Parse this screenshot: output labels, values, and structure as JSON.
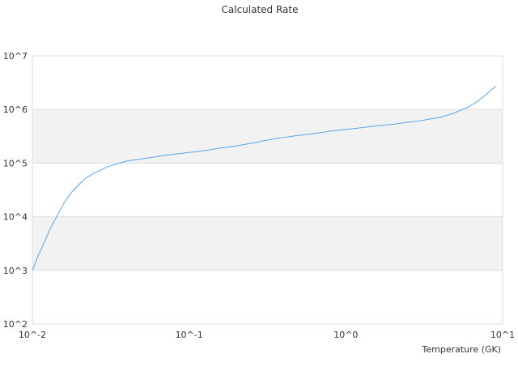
{
  "chart_data": {
    "type": "line",
    "title": "Calculated Rate",
    "xlabel": "Temperature (GK)",
    "ylabel": "",
    "x_scale": "log",
    "y_scale": "log",
    "xlim": [
      0.01,
      10
    ],
    "ylim": [
      100,
      10000000
    ],
    "x_ticks": [
      {
        "value": 0.01,
        "label": "10^-2"
      },
      {
        "value": 0.1,
        "label": "10^-1"
      },
      {
        "value": 1,
        "label": "10^0"
      },
      {
        "value": 10,
        "label": "10^1"
      }
    ],
    "y_ticks": [
      {
        "value": 100,
        "label": "10^2"
      },
      {
        "value": 1000,
        "label": "10^3"
      },
      {
        "value": 10000,
        "label": "10^4"
      },
      {
        "value": 100000,
        "label": "10^5"
      },
      {
        "value": 1000000,
        "label": "10^6"
      },
      {
        "value": 10000000,
        "label": "10^7"
      }
    ],
    "alternating_bands": true,
    "legend": "none",
    "colors": {
      "line": "#5aa5e6",
      "band": "#f2f2f2",
      "grid": "#dddddd"
    },
    "series": [
      {
        "x": [
          0.01,
          0.011,
          0.012,
          0.013,
          0.014,
          0.015,
          0.016,
          0.018,
          0.02,
          0.022,
          0.025,
          0.028,
          0.03,
          0.035,
          0.04,
          0.045,
          0.05,
          0.06,
          0.07,
          0.08,
          0.09,
          0.1,
          0.12,
          0.14,
          0.16,
          0.18,
          0.2,
          0.25,
          0.3,
          0.35,
          0.4,
          0.45,
          0.5,
          0.6,
          0.7,
          0.8,
          0.9,
          1.0,
          1.2,
          1.4,
          1.6,
          1.8,
          2.0,
          2.5,
          3.0,
          3.5,
          4.0,
          4.5,
          5.0,
          6.0,
          7.0,
          8.0,
          9.0
        ],
        "y": [
          1000,
          2000,
          3500,
          6000,
          9000,
          13000,
          18500,
          30000,
          41000,
          53000,
          66000,
          77000,
          85000,
          98000,
          109000,
          115000,
          120000,
          130000,
          140000,
          147000,
          152000,
          158000,
          168000,
          180000,
          192000,
          200000,
          210000,
          235000,
          262000,
          285000,
          300000,
          315000,
          330000,
          350000,
          372000,
          395000,
          410000,
          425000,
          450000,
          475000,
          500000,
          515000,
          530000,
          580000,
          620000,
          670000,
          720000,
          790000,
          880000,
          1100000,
          1450000,
          2000000,
          2700000
        ]
      }
    ]
  }
}
